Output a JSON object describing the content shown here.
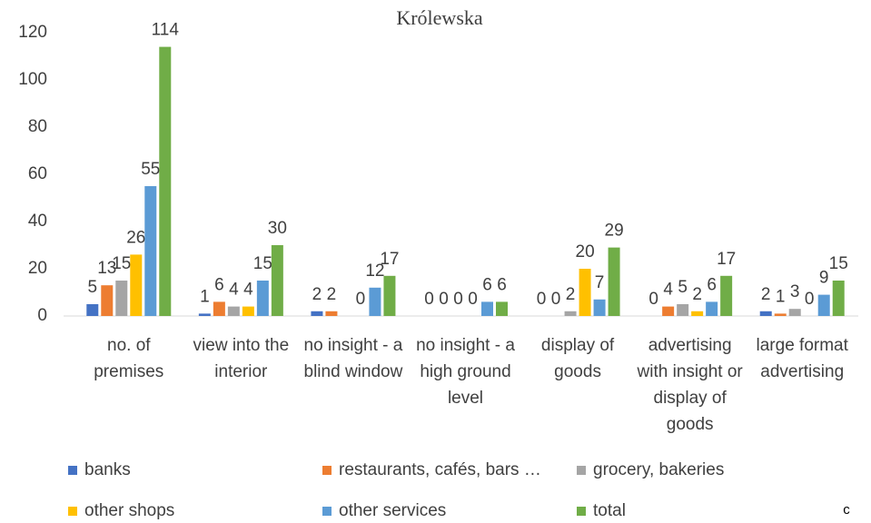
{
  "chart_data": {
    "type": "bar",
    "title": "Królewska",
    "annotation": "c",
    "categories": [
      "no. of premises",
      "view into the interior",
      "no insight - a blind window",
      "no insight - a high ground level",
      "display of goods",
      "advertising with insight or display of goods",
      "large format advertising"
    ],
    "series": [
      {
        "name": "banks",
        "color": "#4472c4",
        "values": [
          5,
          1,
          2,
          0,
          0,
          0,
          2
        ]
      },
      {
        "name": "restaurants, cafés, bars …",
        "color": "#ed7d31",
        "values": [
          13,
          6,
          2,
          0,
          0,
          4,
          1
        ]
      },
      {
        "name": "grocery, bakeries",
        "color": "#a5a5a5",
        "values": [
          15,
          4,
          null,
          0,
          2,
          5,
          3
        ]
      },
      {
        "name": "other shops",
        "color": "#ffc000",
        "values": [
          26,
          4,
          0,
          0,
          20,
          2,
          0
        ]
      },
      {
        "name": "other services",
        "color": "#5b9bd5",
        "values": [
          55,
          15,
          12,
          6,
          7,
          6,
          9
        ]
      },
      {
        "name": "total",
        "color": "#70ad47",
        "values": [
          114,
          30,
          17,
          6,
          29,
          17,
          15
        ]
      }
    ],
    "ylim": [
      0,
      120
    ],
    "yticks": [
      0,
      20,
      40,
      60,
      80,
      100,
      120
    ],
    "grid": false,
    "legend": "bottom"
  }
}
